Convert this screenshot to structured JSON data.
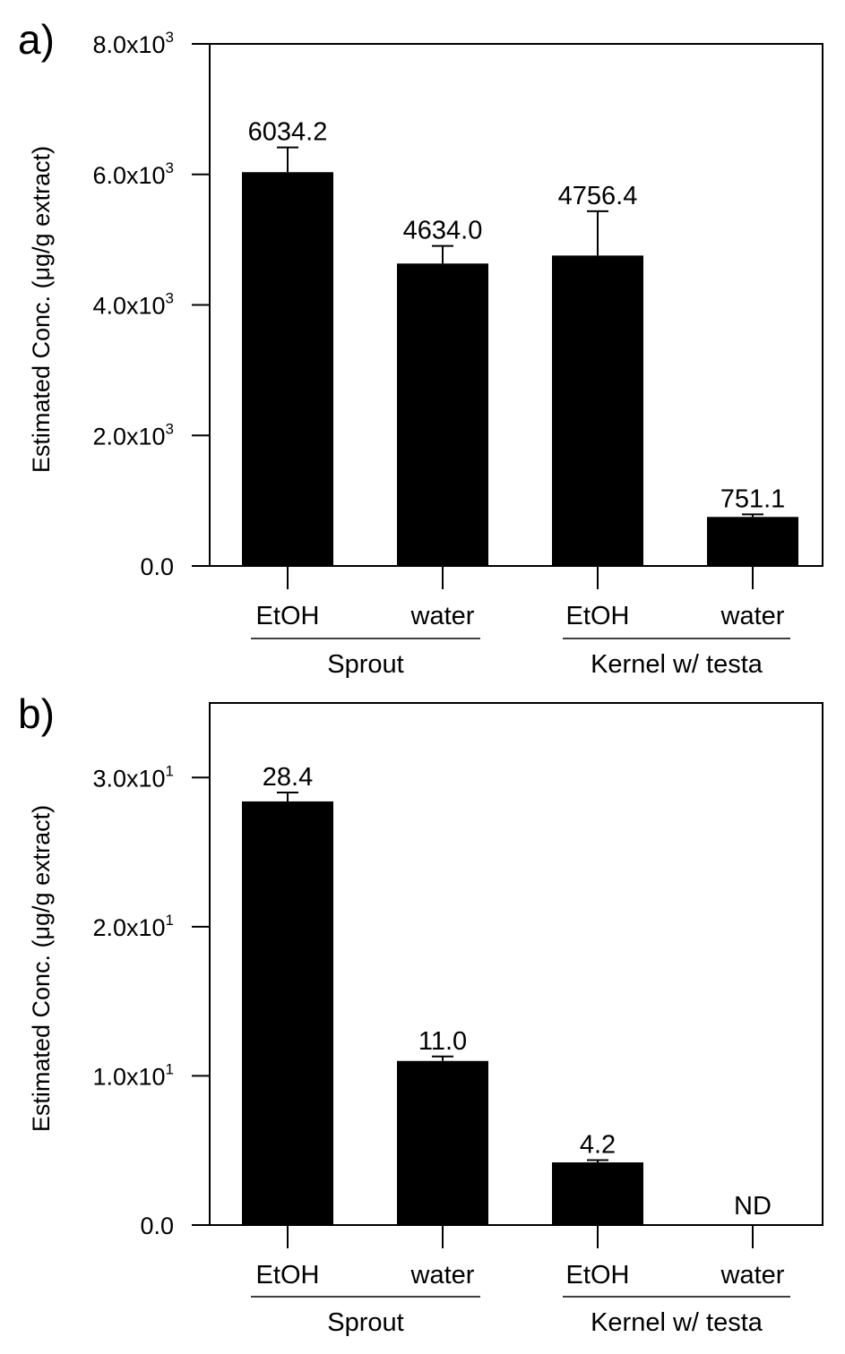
{
  "chart_data": [
    {
      "type": "bar",
      "panel_label": "a)",
      "categories": [
        "EtOH",
        "water",
        "EtOH",
        "water"
      ],
      "groups": [
        {
          "label": "Sprout",
          "categories": [
            0,
            1
          ]
        },
        {
          "label": "Kernel w/ testa",
          "categories": [
            2,
            3
          ]
        }
      ],
      "values": [
        6034.2,
        4634.0,
        4756.4,
        751.1
      ],
      "errors": [
        380,
        270,
        680,
        40
      ],
      "value_labels": [
        "6034.2",
        "4634.0",
        "4756.4",
        "751.1"
      ],
      "ylabel": "Estimated Conc. (μg/g extract)",
      "ylim": [
        0,
        8000
      ],
      "yticks": [
        {
          "value": 0,
          "mantissa": "0.0",
          "exp": ""
        },
        {
          "value": 2000,
          "mantissa": "2.0x10",
          "exp": "3"
        },
        {
          "value": 4000,
          "mantissa": "4.0x10",
          "exp": "3"
        },
        {
          "value": 6000,
          "mantissa": "6.0x10",
          "exp": "3"
        },
        {
          "value": 8000,
          "mantissa": "8.0x10",
          "exp": "3"
        }
      ],
      "bar_color": "#000000"
    },
    {
      "type": "bar",
      "panel_label": "b)",
      "categories": [
        "EtOH",
        "water",
        "EtOH",
        "water"
      ],
      "groups": [
        {
          "label": "Sprout",
          "categories": [
            0,
            1
          ]
        },
        {
          "label": "Kernel w/ testa",
          "categories": [
            2,
            3
          ]
        }
      ],
      "values": [
        28.4,
        11.0,
        4.2,
        0
      ],
      "errors": [
        0.6,
        0.3,
        0.15,
        0
      ],
      "value_labels": [
        "28.4",
        "11.0",
        "4.2",
        "ND"
      ],
      "ylabel": "Estimated Conc. (μg/g extract)",
      "ylim": [
        0,
        35
      ],
      "yticks": [
        {
          "value": 0,
          "mantissa": "0.0",
          "exp": ""
        },
        {
          "value": 10,
          "mantissa": "1.0x10",
          "exp": "1"
        },
        {
          "value": 20,
          "mantissa": "2.0x10",
          "exp": "1"
        },
        {
          "value": 30,
          "mantissa": "3.0x10",
          "exp": "1"
        }
      ],
      "bar_color": "#000000"
    }
  ]
}
